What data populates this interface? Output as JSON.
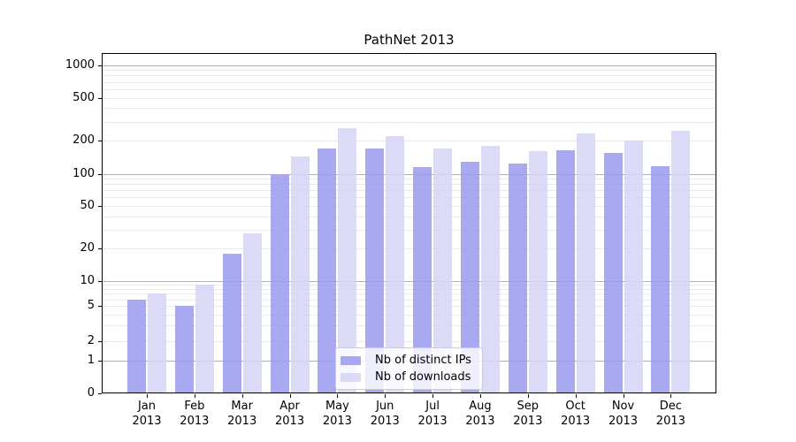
{
  "title": "PathNet 2013",
  "chart_data": {
    "type": "bar",
    "title": "PathNet 2013",
    "categories": [
      "Jan 2013",
      "Feb 2013",
      "Mar 2013",
      "Apr 2013",
      "May 2013",
      "Jun 2013",
      "Jul 2013",
      "Aug 2013",
      "Sep 2013",
      "Oct 2013",
      "Nov 2013",
      "Dec 2013"
    ],
    "series": [
      {
        "name": "Nb of distinct IPs",
        "color": "#9a9af0",
        "values": [
          6,
          5,
          18,
          97,
          172,
          169,
          116,
          128,
          123,
          164,
          155,
          117
        ]
      },
      {
        "name": "Nb of downloads",
        "color": "#d5d5f7",
        "values": [
          7,
          9,
          28,
          145,
          262,
          223,
          170,
          180,
          161,
          234,
          200,
          250
        ]
      }
    ],
    "yscale": "symlog",
    "ylim": [
      0,
      1000
    ],
    "yticks": [
      0,
      1,
      2,
      5,
      10,
      20,
      50,
      100,
      200,
      500,
      1000
    ],
    "xlabel": "",
    "ylabel": "",
    "grid": true,
    "legend_position": "lower center"
  },
  "colors": {
    "grid_major": "#b0b0b0",
    "grid_minor": "#e9e9e9",
    "axis_frame": "#000000",
    "background": "#ffffff"
  }
}
